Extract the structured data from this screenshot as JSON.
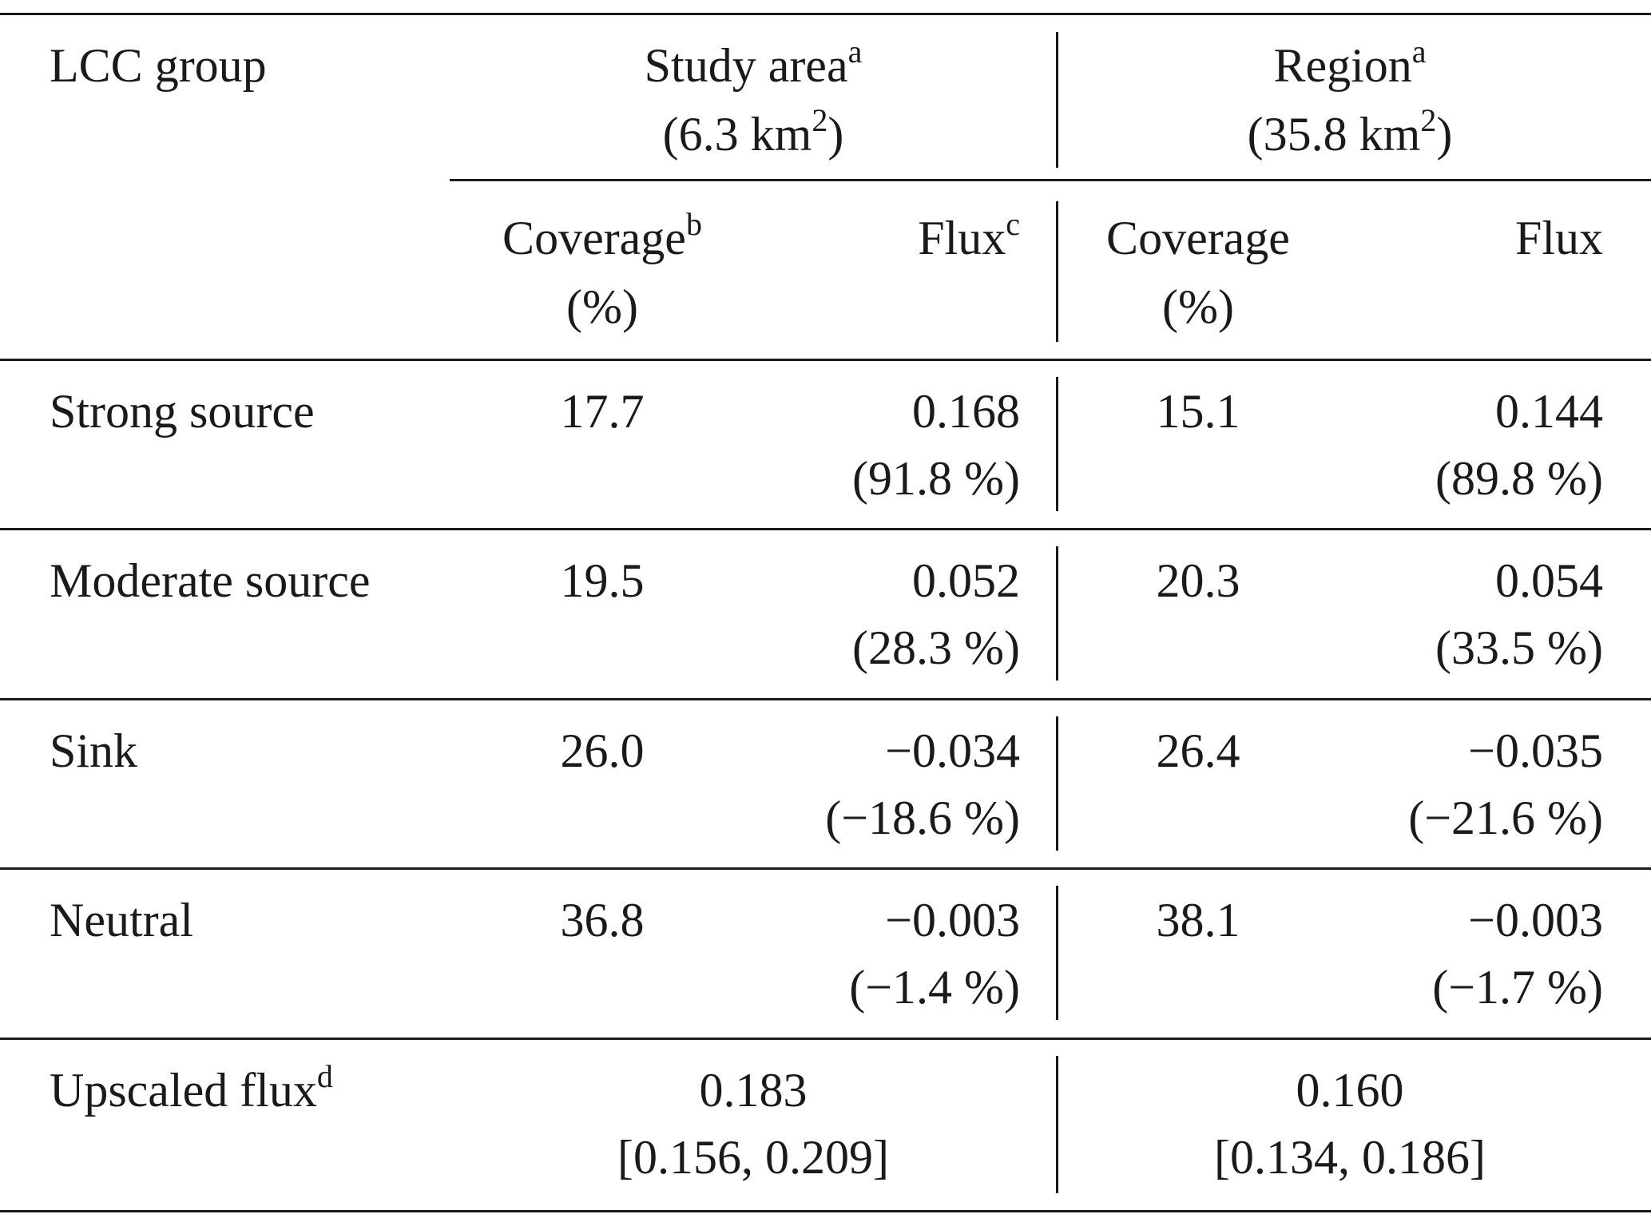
{
  "header": {
    "group_label": "LCC group",
    "study_area_label": "Study area",
    "study_area_sup": "a",
    "study_area_size_prefix": "(6.3 km",
    "study_area_size_sup": "2",
    "study_area_size_suffix": ")",
    "region_label": "Region",
    "region_sup": "a",
    "region_size_prefix": "(35.8 km",
    "region_size_sup": "2",
    "region_size_suffix": ")",
    "coverage_label": "Coverage",
    "coverage_sup": "b",
    "coverage_unit": "(%)",
    "flux_label": "Flux",
    "flux_sup": "c",
    "region_coverage_label": "Coverage",
    "region_coverage_unit": "(%)",
    "region_flux_label": "Flux"
  },
  "rows": [
    {
      "group": "Strong source",
      "sa_coverage": "17.7",
      "sa_flux": "0.168",
      "sa_flux_pct": "(91.8 %)",
      "rg_coverage": "15.1",
      "rg_flux": "0.144",
      "rg_flux_pct": "(89.8 %)"
    },
    {
      "group": "Moderate source",
      "sa_coverage": "19.5",
      "sa_flux": "0.052",
      "sa_flux_pct": "(28.3 %)",
      "rg_coverage": "20.3",
      "rg_flux": "0.054",
      "rg_flux_pct": "(33.5 %)"
    },
    {
      "group": "Sink",
      "sa_coverage": "26.0",
      "sa_flux": "−0.034",
      "sa_flux_pct": "(−18.6 %)",
      "rg_coverage": "26.4",
      "rg_flux": "−0.035",
      "rg_flux_pct": "(−21.6 %)"
    },
    {
      "group": "Neutral",
      "sa_coverage": "36.8",
      "sa_flux": "−0.003",
      "sa_flux_pct": "(−1.4 %)",
      "rg_coverage": "38.1",
      "rg_flux": "−0.003",
      "rg_flux_pct": "(−1.7 %)"
    }
  ],
  "footer": {
    "label": "Upscaled flux",
    "label_sup": "d",
    "sa_value": "0.183",
    "sa_range": "[0.156, 0.209]",
    "rg_value": "0.160",
    "rg_range": "[0.134, 0.186]"
  }
}
